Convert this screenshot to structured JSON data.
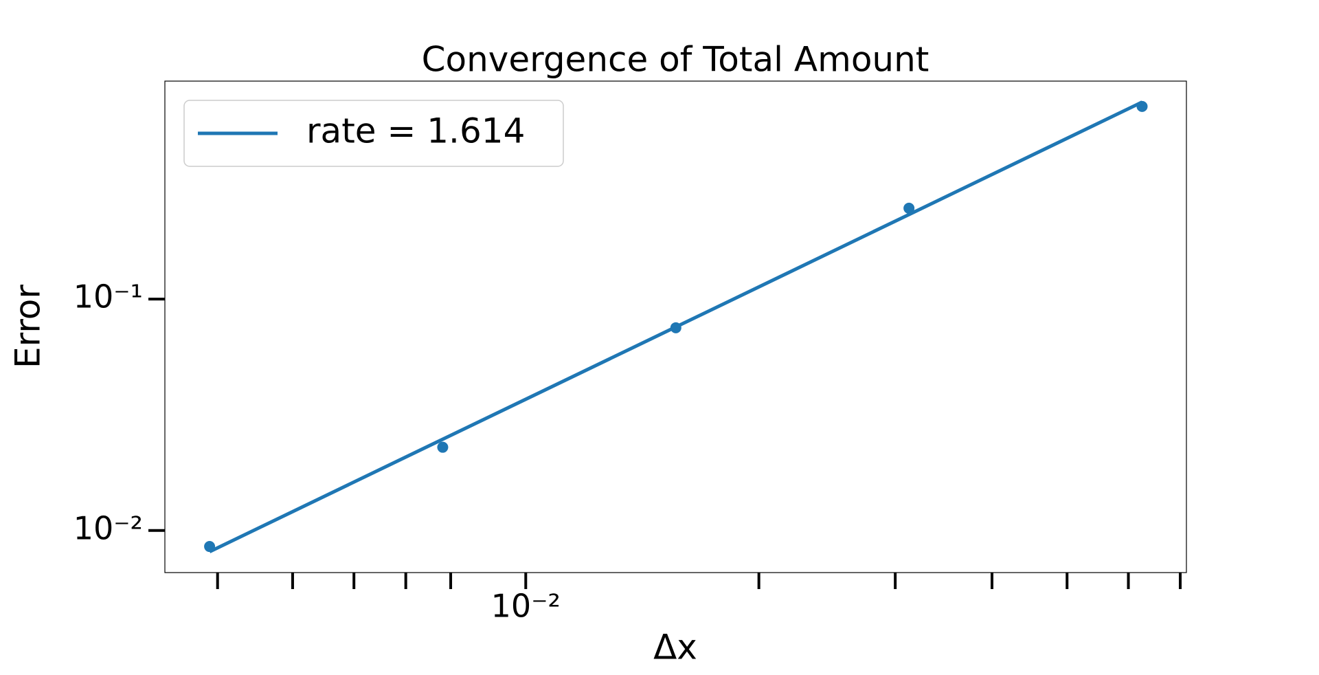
{
  "chart_data": {
    "type": "line",
    "title": "Convergence of Total Amount",
    "x_label": "Δx",
    "y_label": "Error",
    "x": [
      0.00390625,
      0.0078125,
      0.015625,
      0.03125,
      0.0625
    ],
    "series": [
      {
        "color": "#1f77b4",
        "values": [
          0.00853,
          0.0229,
          0.0752,
          0.247,
          0.68
        ],
        "style": "markers"
      },
      {
        "name": "rate = 1.614",
        "color": "#1f77b4",
        "values": [
          0.0081,
          0.0248,
          0.0758,
          0.232,
          0.71
        ],
        "style": "line"
      }
    ],
    "xscale": "log",
    "yscale": "log",
    "xlim": [
      0.00342,
      0.0713
    ],
    "ylim": [
      0.00658,
      0.875
    ],
    "xticks": [
      {
        "value": 0.01,
        "label": "10⁻²"
      }
    ],
    "xminorticks": [
      0.004,
      0.005,
      0.006,
      0.007,
      0.008,
      0.02,
      0.03,
      0.04,
      0.05,
      0.06,
      0.07
    ],
    "yticks": [
      {
        "value": 0.01,
        "label": "10⁻²"
      },
      {
        "value": 0.1,
        "label": "10⁻¹"
      }
    ],
    "legend": "upper left",
    "grid": false
  }
}
